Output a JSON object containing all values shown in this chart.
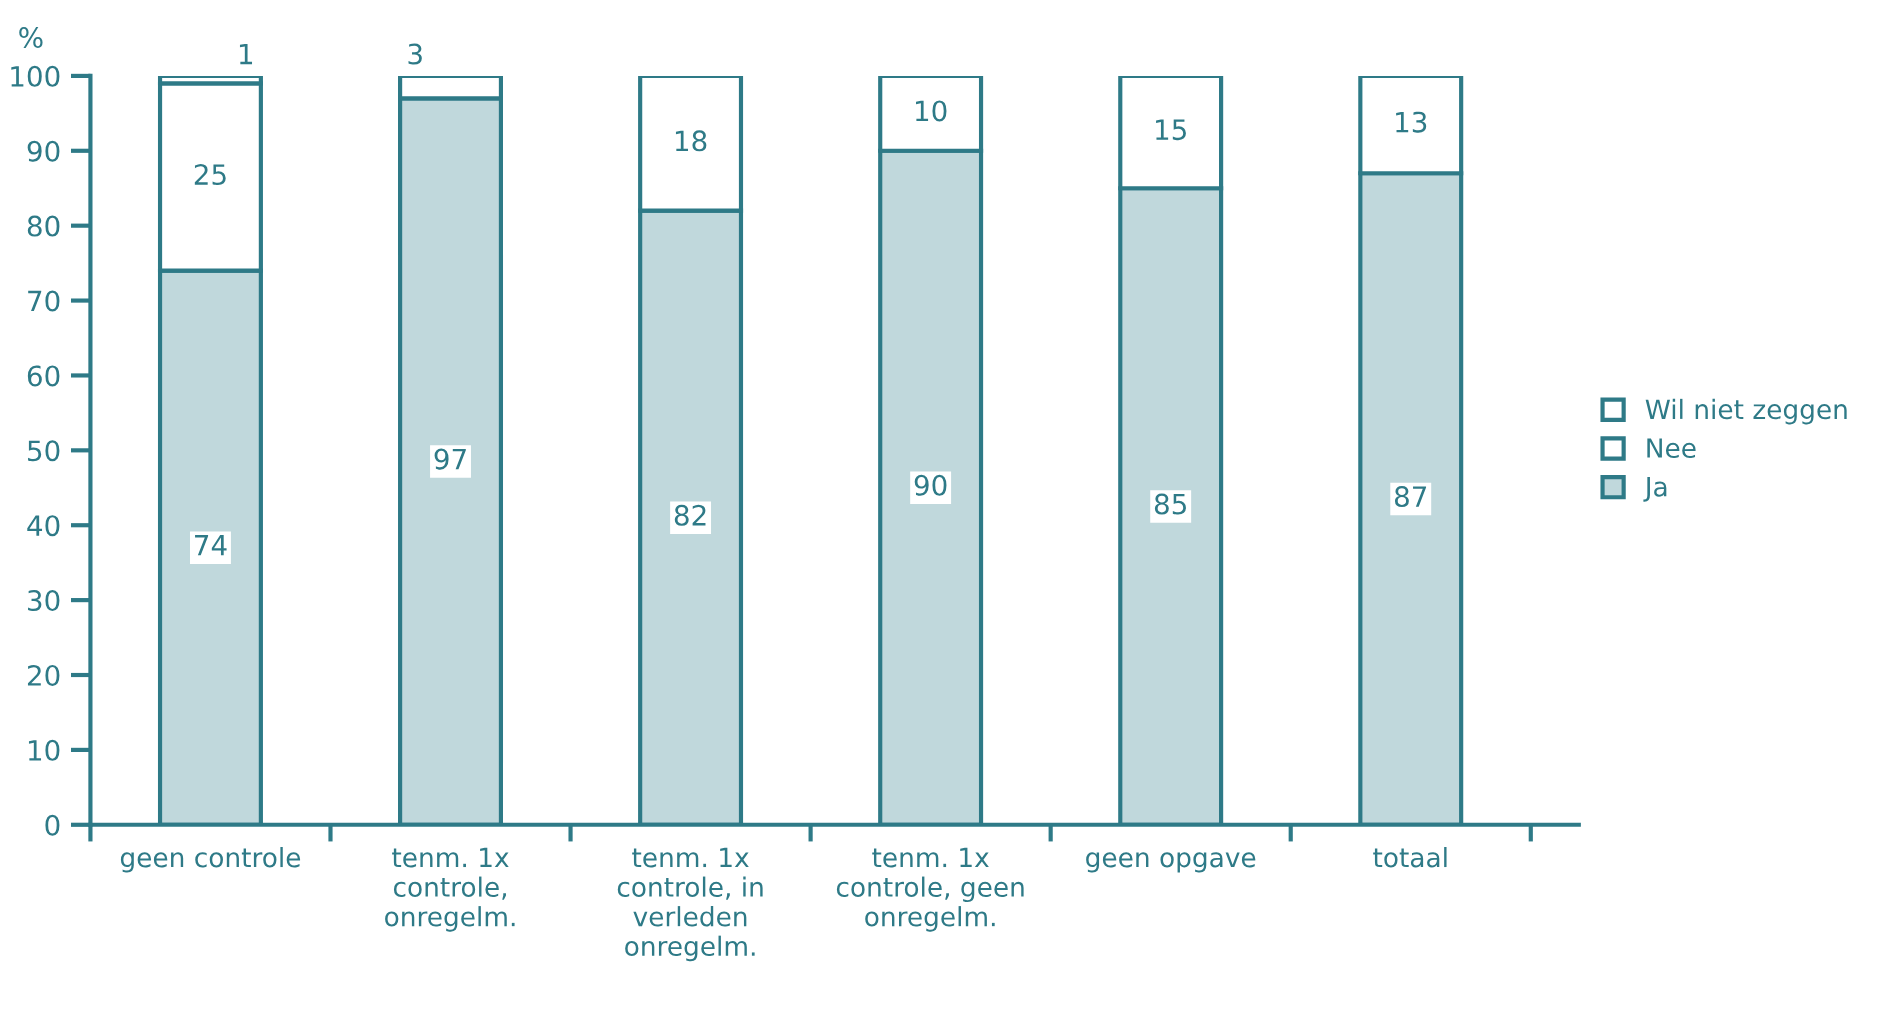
{
  "chart_data": {
    "type": "bar",
    "stacked": true,
    "ylabel": "%",
    "categories": [
      "geen controle",
      "tenm. 1x\ncontrole,\nonregelm.",
      "tenm. 1x\ncontrole, in\nverleden\nonregelm.",
      "tenm. 1x\ncontrole, geen\nonregelm.",
      "geen opgave",
      "totaal"
    ],
    "series": [
      {
        "name": "Ja",
        "color": "#c0d8dc",
        "values": [
          74,
          97,
          82,
          90,
          85,
          87
        ],
        "value_labels": [
          "74",
          "97",
          "82",
          "90",
          "85",
          "87"
        ]
      },
      {
        "name": "Nee",
        "color": "#ffffff",
        "values": [
          25,
          3,
          18,
          10,
          15,
          13
        ],
        "value_labels": [
          "25",
          "3",
          "18",
          "10",
          "15",
          "13"
        ]
      },
      {
        "name": "Wil niet zeggen",
        "color": "#ffffff",
        "values": [
          1,
          null,
          null,
          null,
          null,
          null
        ],
        "value_labels": [
          "1",
          null,
          null,
          null,
          null,
          null
        ]
      }
    ],
    "ylim": [
      0,
      100
    ],
    "yticks": [
      0,
      10,
      20,
      30,
      40,
      50,
      60,
      70,
      80,
      90,
      100
    ],
    "legend": "right",
    "grid": false
  }
}
